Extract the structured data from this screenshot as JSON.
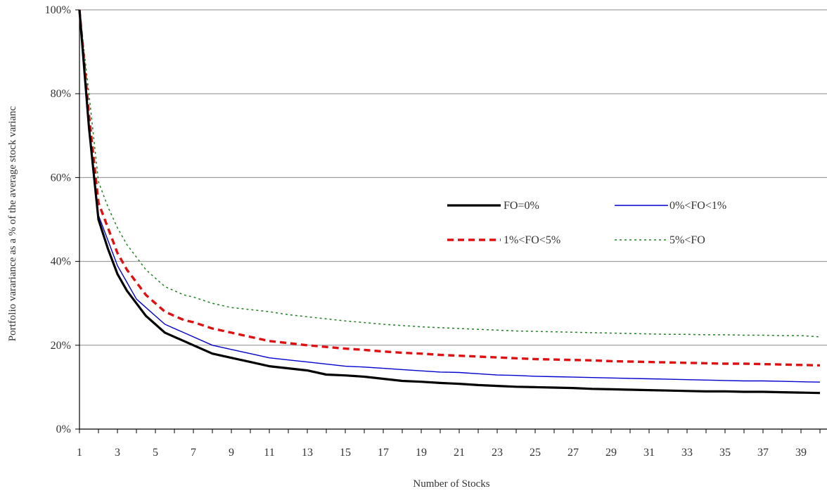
{
  "chart_data": {
    "type": "line",
    "title": "",
    "xlabel": "Number of Stocks",
    "ylabel": "Portfolio varariance as a % of the average stock varianc",
    "xlim": [
      1,
      40
    ],
    "ylim": [
      0,
      100
    ],
    "x_ticks": [
      "1",
      "3",
      "5",
      "7",
      "9",
      "11",
      "13",
      "15",
      "17",
      "19",
      "21",
      "23",
      "25",
      "27",
      "29",
      "31",
      "33",
      "35",
      "37",
      "39"
    ],
    "y_ticks": [
      "0%",
      "20%",
      "40%",
      "60%",
      "80%",
      "100%"
    ],
    "grid": "horizontal",
    "legend_position": "center-right",
    "x": [
      1,
      1.5,
      2,
      2.5,
      3,
      3.5,
      4,
      4.5,
      5,
      5.5,
      6,
      6.5,
      7,
      8,
      9,
      10,
      11,
      12,
      13,
      14,
      15,
      16,
      17,
      18,
      19,
      20,
      21,
      22,
      23,
      24,
      25,
      26,
      27,
      28,
      29,
      30,
      31,
      32,
      33,
      34,
      35,
      36,
      37,
      38,
      39,
      40
    ],
    "series": [
      {
        "name": "FO=0%",
        "color": "#000000",
        "style": "solid-thick",
        "values": [
          100,
          72,
          50,
          43,
          37,
          33,
          30,
          27,
          25,
          23,
          22,
          21,
          20,
          18,
          17,
          16,
          15,
          14.5,
          14,
          13,
          12.8,
          12.5,
          12,
          11.5,
          11.3,
          11,
          10.8,
          10.5,
          10.3,
          10.1,
          10,
          9.9,
          9.8,
          9.6,
          9.5,
          9.4,
          9.3,
          9.2,
          9.1,
          9.0,
          9.0,
          8.9,
          8.9,
          8.8,
          8.7,
          8.6
        ]
      },
      {
        "name": "0%<FO<1%",
        "color": "#0000cc",
        "style": "solid-thin",
        "values": [
          100,
          73,
          51,
          45,
          39,
          35,
          31,
          29,
          27,
          25,
          24,
          23,
          22,
          20,
          19,
          18,
          17,
          16.5,
          16,
          15.5,
          15,
          14.8,
          14.5,
          14.2,
          13.9,
          13.6,
          13.5,
          13.2,
          12.9,
          12.8,
          12.6,
          12.5,
          12.4,
          12.3,
          12.2,
          12.1,
          12.0,
          11.9,
          11.8,
          11.7,
          11.6,
          11.5,
          11.5,
          11.4,
          11.3,
          11.2
        ]
      },
      {
        "name": "1%<FO<5%",
        "color": "#e01010",
        "style": "dashed",
        "values": [
          100,
          75,
          54,
          48,
          42,
          38,
          35,
          32,
          30,
          28,
          27,
          26,
          25.5,
          24,
          23,
          22,
          21,
          20.5,
          20,
          19.6,
          19.2,
          18.9,
          18.5,
          18.2,
          18,
          17.7,
          17.5,
          17.3,
          17.1,
          16.9,
          16.7,
          16.6,
          16.5,
          16.4,
          16.2,
          16.1,
          16.0,
          15.9,
          15.8,
          15.7,
          15.6,
          15.6,
          15.5,
          15.4,
          15.3,
          15.2
        ]
      },
      {
        "name": "5%<FO",
        "color": "#208020",
        "style": "dotted",
        "values": [
          100,
          80,
          59,
          53,
          48,
          44,
          41,
          38,
          36,
          34,
          33,
          32,
          31.5,
          30,
          29,
          28.5,
          28,
          27.3,
          26.8,
          26.3,
          25.8,
          25.4,
          25,
          24.7,
          24.4,
          24.2,
          24,
          23.8,
          23.6,
          23.4,
          23.3,
          23.2,
          23.1,
          23,
          22.9,
          22.8,
          22.7,
          22.6,
          22.6,
          22.5,
          22.5,
          22.4,
          22.4,
          22.3,
          22.3,
          22.0
        ]
      }
    ]
  }
}
